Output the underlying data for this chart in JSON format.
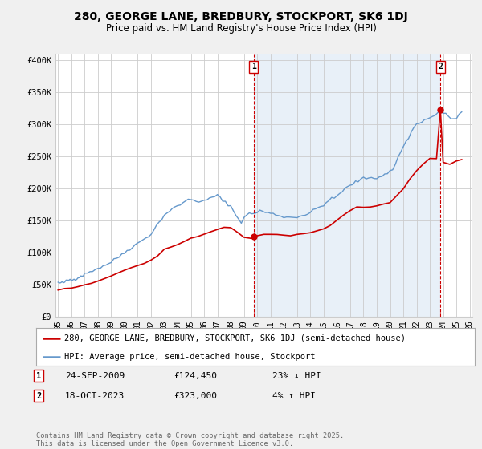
{
  "title": "280, GEORGE LANE, BREDBURY, STOCKPORT, SK6 1DJ",
  "subtitle": "Price paid vs. HM Land Registry's House Price Index (HPI)",
  "red_label": "280, GEORGE LANE, BREDBURY, STOCKPORT, SK6 1DJ (semi-detached house)",
  "blue_label": "HPI: Average price, semi-detached house, Stockport",
  "transaction1": {
    "label": "1",
    "date": "24-SEP-2009",
    "price": "£124,450",
    "change": "23% ↓ HPI"
  },
  "transaction2": {
    "label": "2",
    "date": "18-OCT-2023",
    "price": "£323,000",
    "change": "4% ↑ HPI"
  },
  "footer": "Contains HM Land Registry data © Crown copyright and database right 2025.\nThis data is licensed under the Open Government Licence v3.0.",
  "background_color": "#f0f0f0",
  "plot_background": "#ffffff",
  "plot_background_shaded": "#e8f0f8",
  "grid_color": "#cccccc",
  "red_color": "#cc0000",
  "blue_color": "#6699cc",
  "marker1_x": 2009.73,
  "marker1_y": 124450,
  "marker2_x": 2023.79,
  "marker2_y": 323000,
  "ylim": [
    0,
    410000
  ],
  "xlim": [
    1994.8,
    2026.2
  ],
  "yticks": [
    0,
    50000,
    100000,
    150000,
    200000,
    250000,
    300000,
    350000,
    400000
  ],
  "ytick_labels": [
    "£0",
    "£50K",
    "£100K",
    "£150K",
    "£200K",
    "£250K",
    "£300K",
    "£350K",
    "£400K"
  ],
  "xticks": [
    1995,
    1996,
    1997,
    1998,
    1999,
    2000,
    2001,
    2002,
    2003,
    2004,
    2005,
    2006,
    2007,
    2008,
    2009,
    2010,
    2011,
    2012,
    2013,
    2014,
    2015,
    2016,
    2017,
    2018,
    2019,
    2020,
    2021,
    2022,
    2023,
    2024,
    2025,
    2026
  ],
  "hpi_years": [
    1995.0,
    1995.1,
    1995.2,
    1995.3,
    1995.4,
    1995.5,
    1995.6,
    1995.7,
    1995.8,
    1995.9,
    1996.0,
    1996.1,
    1996.2,
    1996.3,
    1996.4,
    1996.5,
    1996.6,
    1996.7,
    1996.8,
    1996.9,
    1997.0,
    1997.2,
    1997.4,
    1997.6,
    1997.8,
    1998.0,
    1998.2,
    1998.4,
    1998.6,
    1998.8,
    1999.0,
    1999.2,
    1999.4,
    1999.6,
    1999.8,
    2000.0,
    2000.2,
    2000.4,
    2000.6,
    2000.8,
    2001.0,
    2001.2,
    2001.4,
    2001.6,
    2001.8,
    2002.0,
    2002.2,
    2002.4,
    2002.6,
    2002.8,
    2003.0,
    2003.2,
    2003.4,
    2003.6,
    2003.8,
    2004.0,
    2004.2,
    2004.4,
    2004.6,
    2004.8,
    2005.0,
    2005.2,
    2005.4,
    2005.6,
    2005.8,
    2006.0,
    2006.2,
    2006.4,
    2006.6,
    2006.8,
    2007.0,
    2007.2,
    2007.4,
    2007.6,
    2007.8,
    2008.0,
    2008.2,
    2008.4,
    2008.6,
    2008.8,
    2009.0,
    2009.2,
    2009.4,
    2009.6,
    2009.8,
    2010.0,
    2010.2,
    2010.4,
    2010.6,
    2010.8,
    2011.0,
    2011.2,
    2011.4,
    2011.6,
    2011.8,
    2012.0,
    2012.2,
    2012.4,
    2012.6,
    2012.8,
    2013.0,
    2013.2,
    2013.4,
    2013.6,
    2013.8,
    2014.0,
    2014.2,
    2014.4,
    2014.6,
    2014.8,
    2015.0,
    2015.2,
    2015.4,
    2015.6,
    2015.8,
    2016.0,
    2016.2,
    2016.4,
    2016.6,
    2016.8,
    2017.0,
    2017.2,
    2017.4,
    2017.6,
    2017.8,
    2018.0,
    2018.2,
    2018.4,
    2018.6,
    2018.8,
    2019.0,
    2019.2,
    2019.4,
    2019.6,
    2019.8,
    2020.0,
    2020.2,
    2020.4,
    2020.6,
    2020.8,
    2021.0,
    2021.2,
    2021.4,
    2021.6,
    2021.8,
    2022.0,
    2022.2,
    2022.4,
    2022.6,
    2022.8,
    2023.0,
    2023.2,
    2023.4,
    2023.6,
    2023.8,
    2024.0,
    2024.2,
    2024.4,
    2024.6,
    2024.8,
    2025.0,
    2025.2,
    2025.4
  ],
  "hpi_vals": [
    53000,
    52500,
    52000,
    52500,
    53000,
    54000,
    55000,
    56000,
    57000,
    57500,
    57000,
    57500,
    58000,
    59000,
    60000,
    61000,
    62000,
    63000,
    64000,
    65000,
    66000,
    68000,
    70000,
    72000,
    74000,
    75000,
    77000,
    79000,
    81000,
    83000,
    85000,
    88000,
    91000,
    94000,
    97000,
    100000,
    103000,
    106000,
    109000,
    112000,
    114000,
    117000,
    120000,
    123000,
    126000,
    129000,
    135000,
    141000,
    147000,
    153000,
    158000,
    162000,
    165000,
    168000,
    170000,
    172000,
    175000,
    178000,
    180000,
    182000,
    183000,
    182000,
    181000,
    180000,
    179000,
    180000,
    182000,
    184000,
    186000,
    188000,
    190000,
    185000,
    180000,
    178000,
    176000,
    172000,
    165000,
    158000,
    152000,
    148000,
    155000,
    158000,
    160000,
    161000,
    162000,
    163000,
    165000,
    164000,
    163000,
    162000,
    161000,
    160000,
    159000,
    158000,
    157000,
    156000,
    155000,
    155000,
    155000,
    155000,
    156000,
    157000,
    158000,
    159000,
    160000,
    162000,
    165000,
    168000,
    170000,
    172000,
    175000,
    178000,
    181000,
    183000,
    185000,
    188000,
    192000,
    196000,
    199000,
    202000,
    204000,
    207000,
    210000,
    212000,
    214000,
    215000,
    216000,
    217000,
    217000,
    216000,
    217000,
    218000,
    220000,
    222000,
    224000,
    226000,
    230000,
    238000,
    248000,
    258000,
    265000,
    272000,
    280000,
    288000,
    295000,
    300000,
    303000,
    305000,
    307000,
    308000,
    310000,
    312000,
    315000,
    318000,
    320000,
    318000,
    315000,
    312000,
    310000,
    308000,
    310000,
    315000,
    318000
  ],
  "red_years": [
    1995.0,
    1995.5,
    1996.0,
    1996.5,
    1997.0,
    1997.5,
    1998.0,
    1998.5,
    1999.0,
    1999.5,
    2000.0,
    2000.5,
    2001.0,
    2001.5,
    2002.0,
    2002.5,
    2003.0,
    2003.5,
    2004.0,
    2004.5,
    2005.0,
    2005.5,
    2006.0,
    2006.5,
    2007.0,
    2007.5,
    2008.0,
    2008.5,
    2009.0,
    2009.5,
    2009.73,
    2010.0,
    2010.5,
    2011.0,
    2011.5,
    2012.0,
    2012.5,
    2013.0,
    2013.5,
    2014.0,
    2014.5,
    2015.0,
    2015.5,
    2016.0,
    2016.5,
    2017.0,
    2017.5,
    2018.0,
    2018.5,
    2019.0,
    2019.5,
    2020.0,
    2020.5,
    2021.0,
    2021.5,
    2022.0,
    2022.5,
    2023.0,
    2023.5,
    2023.79,
    2024.0,
    2024.5,
    2025.0,
    2025.4
  ],
  "red_vals": [
    42000,
    43000,
    44000,
    46000,
    48000,
    52000,
    56000,
    60000,
    64000,
    68000,
    72000,
    76000,
    79000,
    83000,
    87000,
    95000,
    103000,
    108000,
    113000,
    118000,
    122000,
    125000,
    128000,
    132000,
    136000,
    140000,
    140000,
    132000,
    123000,
    122000,
    124450,
    126000,
    128000,
    129000,
    128000,
    127000,
    127000,
    128000,
    129000,
    130000,
    133000,
    138000,
    143000,
    150000,
    158000,
    165000,
    168000,
    170000,
    170000,
    172000,
    175000,
    178000,
    188000,
    200000,
    215000,
    228000,
    238000,
    245000,
    248000,
    323000,
    242000,
    238000,
    242000,
    245000
  ]
}
